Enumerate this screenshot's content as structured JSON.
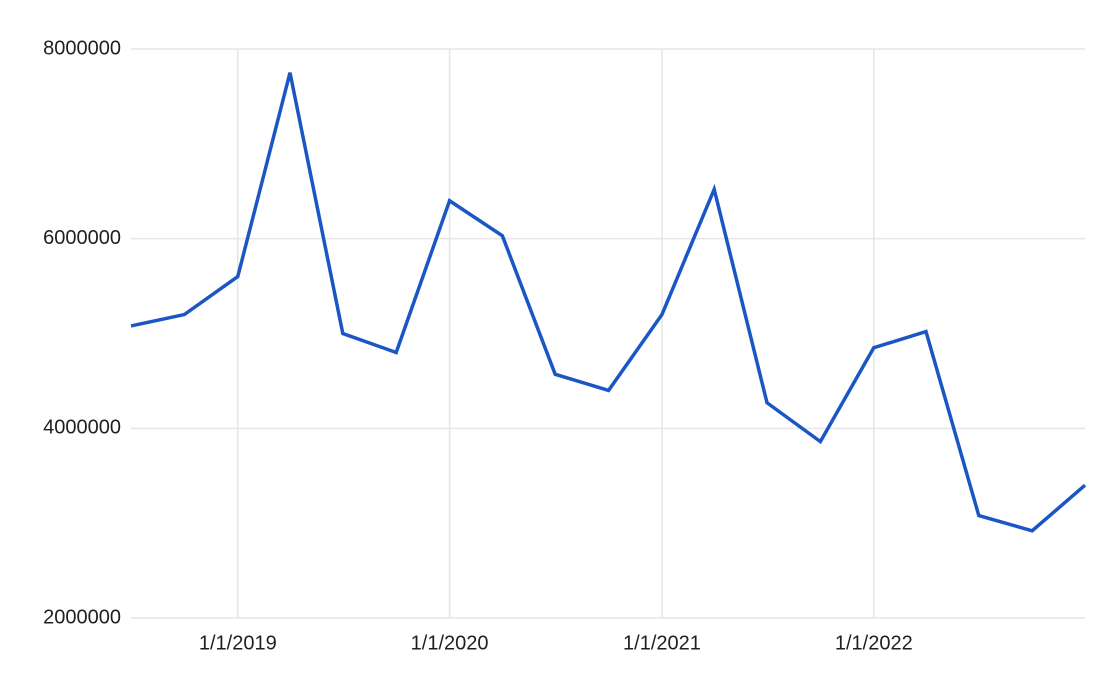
{
  "chart_data": {
    "type": "line",
    "title": "",
    "xlabel": "",
    "ylabel": "",
    "grid": true,
    "legend": "none",
    "x_tick_labels": [
      "1/1/2019",
      "1/1/2020",
      "1/1/2021",
      "1/1/2022"
    ],
    "y_tick_labels": [
      "2000000",
      "4000000",
      "6000000",
      "8000000"
    ],
    "ylim": [
      2000000,
      8000000
    ],
    "xlim": [
      "2018-07-01",
      "2022-12-31"
    ],
    "series": [
      {
        "color": "#1a56c4",
        "x": [
          "2018-07-01",
          "2018-10-01",
          "2019-01-01",
          "2019-04-01",
          "2019-07-01",
          "2019-10-01",
          "2020-01-01",
          "2020-04-01",
          "2020-07-01",
          "2020-10-01",
          "2021-01-01",
          "2021-04-01",
          "2021-07-01",
          "2021-10-01",
          "2022-01-01",
          "2022-04-01",
          "2022-07-01",
          "2022-10-01",
          "2022-12-31"
        ],
        "values": [
          5080000,
          5200000,
          5600000,
          7750000,
          5000000,
          4800000,
          6400000,
          6030000,
          4570000,
          4400000,
          5200000,
          6520000,
          4270000,
          3860000,
          4850000,
          5020000,
          3080000,
          2920000,
          3400000
        ]
      }
    ]
  }
}
